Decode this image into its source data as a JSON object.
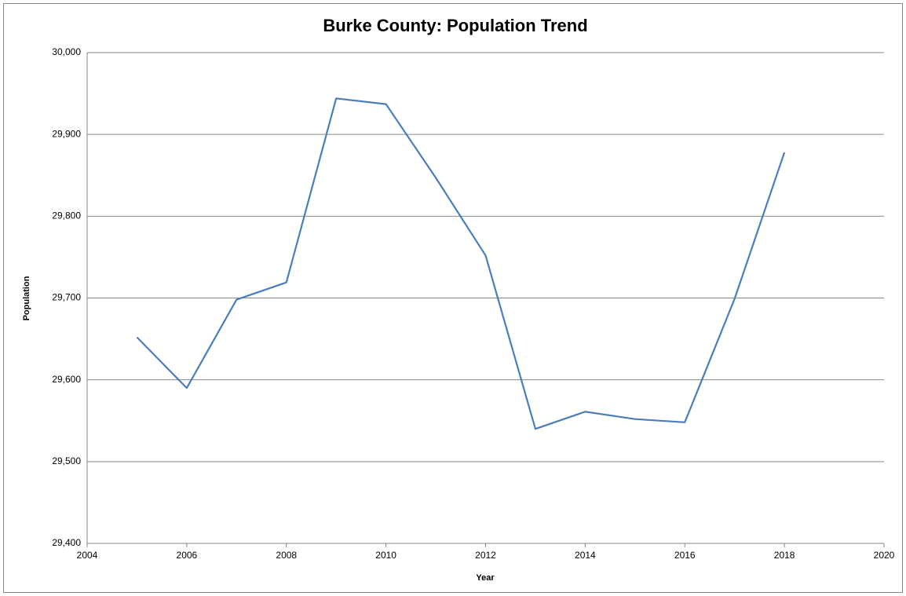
{
  "chart_data": {
    "type": "line",
    "title": "Burke County: Population Trend",
    "x_label": "Year",
    "y_label": "Population",
    "series": [
      {
        "name": "Population",
        "color": "#4a7ebb",
        "x": [
          2005,
          2006,
          2007,
          2008,
          2009,
          2010,
          2011,
          2012,
          2013,
          2014,
          2015,
          2016,
          2017,
          2018
        ],
        "values": [
          29652,
          29590,
          29698,
          29719,
          29944,
          29937,
          29847,
          29752,
          29540,
          29561,
          29552,
          29548,
          29699,
          29878
        ]
      }
    ],
    "xlim": [
      2004,
      2020
    ],
    "xticks": [
      2004,
      2006,
      2008,
      2010,
      2012,
      2014,
      2016,
      2018,
      2020
    ],
    "ylim": [
      29400,
      30000
    ],
    "yticks": [
      {
        "value": 29400,
        "label": "29,400"
      },
      {
        "value": 29500,
        "label": "29,500"
      },
      {
        "value": 29600,
        "label": "29,600"
      },
      {
        "value": 29700,
        "label": "29,700"
      },
      {
        "value": 29800,
        "label": "29,800"
      },
      {
        "value": 29900,
        "label": "29,900"
      },
      {
        "value": 30000,
        "label": "30,000"
      }
    ],
    "grid": true
  }
}
